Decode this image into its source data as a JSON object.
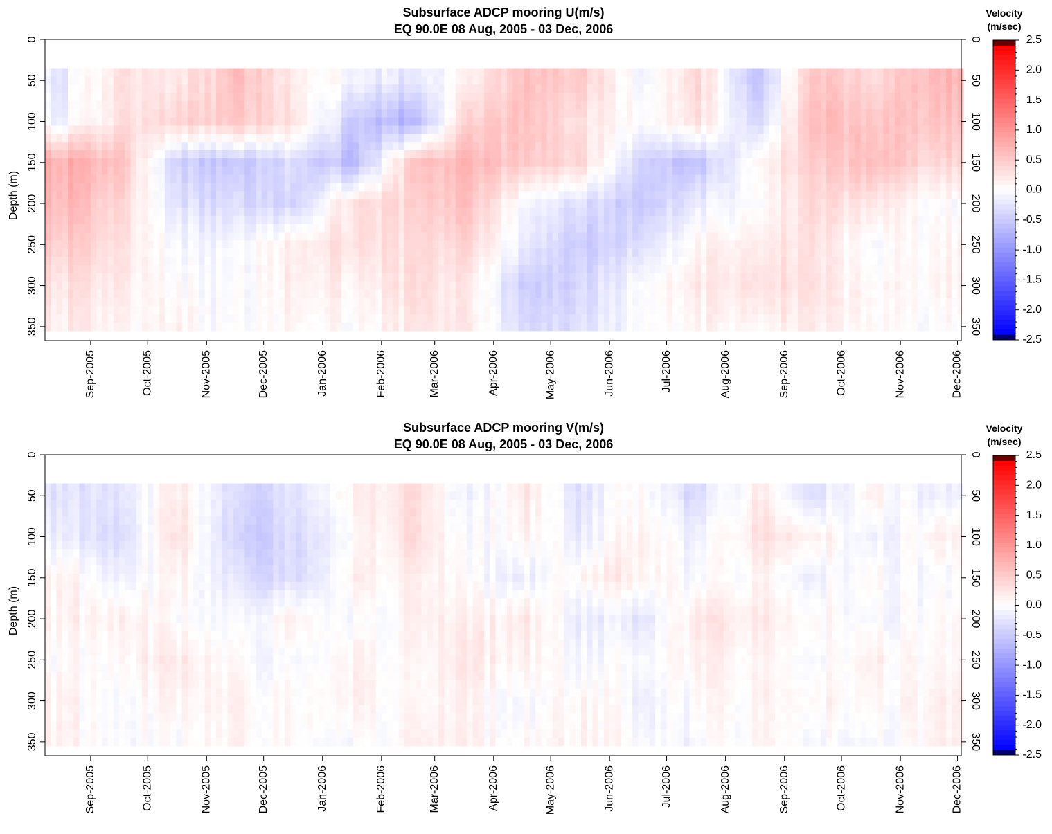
{
  "colors": {
    "negative_max": "#0000ff",
    "neutral": "#ffffff",
    "positive_max": "#ff0000",
    "negative_cap": "#000066",
    "positive_cap": "#660000"
  },
  "colorbar": {
    "title_line1": "Velocity",
    "title_line2": "(m/sec)",
    "range": [
      -2.5,
      2.5
    ],
    "tick_labels": [
      "2.5",
      "2.0",
      "1.5",
      "1.0",
      "0.5",
      "0.0",
      "-0.5",
      "-1.0",
      "-1.5",
      "-2.0",
      "-2.5"
    ]
  },
  "chart_data": [
    {
      "type": "heatmap",
      "title": "Subsurface ADCP mooring U(m/s)",
      "subtitle": "EQ 90.0E     08 Aug, 2005 - 03 Dec, 2006",
      "ylabel": "Depth (m)",
      "y_tick_labels": [
        "0",
        "50",
        "100",
        "150",
        "200",
        "250",
        "300",
        "350"
      ],
      "ylim": [
        0,
        367
      ],
      "x_tick_labels": [
        "Sep-2005",
        "Oct-2005",
        "Nov-2005",
        "Dec-2005",
        "Jan-2006",
        "Feb-2006",
        "Mar-2006",
        "Apr-2006",
        "May-2006",
        "Jun-2006",
        "Jul-2006",
        "Aug-2006",
        "Sep-2006",
        "Oct-2006",
        "Nov-2006",
        "Dec-2006"
      ],
      "xlim": [
        "2005-08-08",
        "2006-12-03"
      ],
      "data_depth_range": [
        35,
        355
      ],
      "months": [
        "2005-08",
        "2005-09",
        "2005-10",
        "2005-11",
        "2005-12",
        "2006-01",
        "2006-02",
        "2006-03",
        "2006-04",
        "2006-05",
        "2006-06",
        "2006-07",
        "2006-08",
        "2006-09",
        "2006-10",
        "2006-11"
      ],
      "depths": [
        50,
        100,
        150,
        200,
        250,
        300,
        350
      ],
      "values": [
        [
          -0.2,
          0.3,
          0.2,
          0.6,
          0.2,
          -0.1,
          -0.3,
          0.1,
          0.6,
          0.5,
          -0.1,
          0.4,
          -0.6,
          0.6,
          0.3,
          0.7
        ],
        [
          -0.1,
          0.3,
          0.4,
          0.5,
          0.3,
          -0.5,
          -0.8,
          0.4,
          0.6,
          0.3,
          0.0,
          0.3,
          -0.4,
          0.7,
          0.5,
          0.6
        ],
        [
          0.8,
          0.6,
          -0.5,
          -0.6,
          -0.3,
          -0.7,
          0.5,
          0.7,
          0.5,
          0.4,
          -0.4,
          -0.6,
          0.1,
          0.5,
          0.6,
          0.4
        ],
        [
          0.7,
          0.4,
          -0.3,
          -0.4,
          -0.4,
          0.3,
          0.4,
          0.6,
          -0.1,
          -0.3,
          -0.5,
          -0.2,
          0.0,
          0.4,
          0.2,
          0.0
        ],
        [
          0.5,
          0.3,
          -0.1,
          -0.1,
          0.2,
          0.3,
          0.3,
          0.4,
          -0.2,
          -0.5,
          -0.3,
          0.1,
          0.2,
          0.3,
          -0.1,
          0.1
        ],
        [
          0.3,
          0.2,
          0.0,
          -0.1,
          0.2,
          0.1,
          0.3,
          0.2,
          -0.5,
          -0.4,
          0.0,
          0.2,
          0.3,
          0.3,
          0.0,
          0.1
        ],
        [
          0.2,
          0.1,
          0.1,
          -0.1,
          0.1,
          0.0,
          0.2,
          0.2,
          -0.4,
          -0.3,
          0.0,
          0.1,
          0.1,
          0.2,
          0.0,
          0.0
        ]
      ]
    },
    {
      "type": "heatmap",
      "title": "Subsurface ADCP mooring V(m/s)",
      "subtitle": "EQ 90.0E     08 Aug, 2005 - 03 Dec, 2006",
      "ylabel": "Depth (m)",
      "y_tick_labels": [
        "0",
        "50",
        "100",
        "150",
        "200",
        "250",
        "300",
        "350"
      ],
      "ylim": [
        0,
        367
      ],
      "x_tick_labels": [
        "Sep-2005",
        "Oct-2005",
        "Nov-2005",
        "Dec-2005",
        "Jan-2006",
        "Feb-2006",
        "Mar-2006",
        "Apr-2006",
        "May-2006",
        "Jun-2006",
        "Jul-2006",
        "Aug-2006",
        "Sep-2006",
        "Oct-2006",
        "Nov-2006",
        "Dec-2006"
      ],
      "xlim": [
        "2005-08-08",
        "2006-12-03"
      ],
      "data_depth_range": [
        35,
        355
      ],
      "months": [
        "2005-08",
        "2005-09",
        "2005-10",
        "2005-11",
        "2005-12",
        "2006-01",
        "2006-02",
        "2006-03",
        "2006-04",
        "2006-05",
        "2006-06",
        "2006-07",
        "2006-08",
        "2006-09",
        "2006-10",
        "2006-11"
      ],
      "depths": [
        50,
        100,
        150,
        200,
        250,
        300,
        350
      ],
      "values": [
        [
          -0.3,
          -0.2,
          0.2,
          -0.4,
          -0.3,
          0.1,
          0.3,
          -0.2,
          0.2,
          -0.3,
          0.1,
          -0.4,
          0.2,
          -0.3,
          0.1,
          -0.2
        ],
        [
          -0.2,
          -0.3,
          0.3,
          -0.5,
          -0.4,
          0.0,
          0.3,
          -0.1,
          0.1,
          -0.2,
          0.2,
          -0.2,
          0.3,
          0.2,
          -0.2,
          0.1
        ],
        [
          0.1,
          -0.1,
          0.1,
          -0.3,
          -0.4,
          0.1,
          0.1,
          0.0,
          -0.2,
          0.1,
          0.2,
          -0.1,
          0.1,
          -0.1,
          0.0,
          -0.1
        ],
        [
          0.1,
          0.2,
          0.0,
          -0.1,
          0.1,
          -0.1,
          0.1,
          0.1,
          0.2,
          -0.2,
          -0.2,
          0.2,
          0.2,
          0.1,
          -0.1,
          0.0
        ],
        [
          0.0,
          0.1,
          0.2,
          0.0,
          -0.1,
          0.1,
          0.0,
          0.2,
          0.1,
          -0.1,
          0.0,
          0.1,
          0.1,
          0.0,
          0.1,
          0.0
        ],
        [
          0.1,
          0.0,
          0.1,
          0.1,
          0.0,
          0.1,
          0.0,
          0.1,
          -0.1,
          0.1,
          -0.1,
          0.0,
          0.1,
          0.1,
          0.0,
          0.1
        ],
        [
          0.1,
          0.0,
          0.0,
          0.1,
          0.0,
          -0.1,
          0.1,
          0.1,
          0.0,
          0.1,
          0.0,
          -0.1,
          0.1,
          0.0,
          -0.1,
          0.1
        ]
      ]
    }
  ]
}
